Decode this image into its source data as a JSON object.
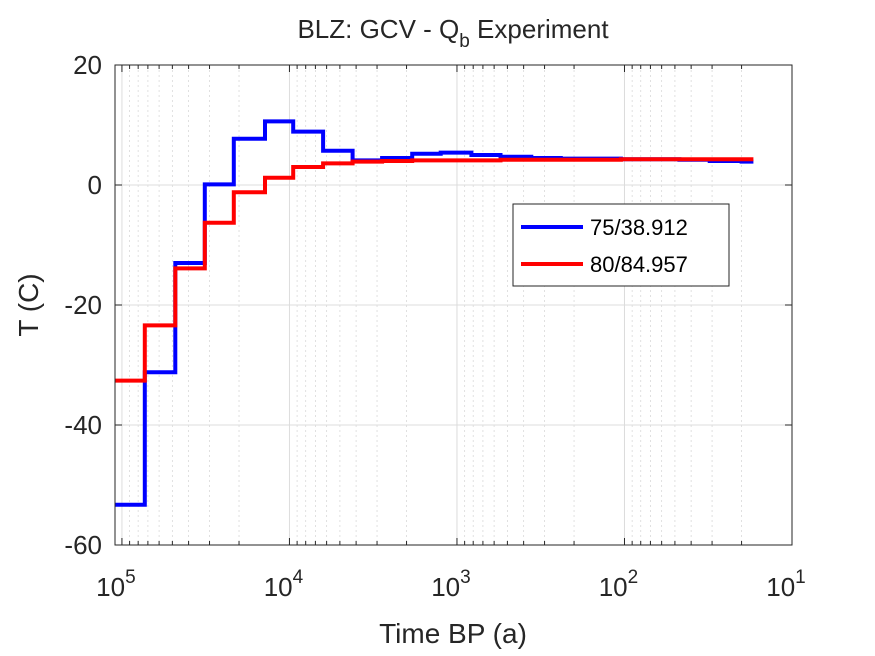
{
  "chart_data": {
    "type": "line",
    "title": "BLZ: GCV - Q",
    "title_subscript": "b",
    "title_suffix": " Experiment",
    "xlabel": "Time BP (a)",
    "ylabel": "T (C)",
    "x_scale": "log",
    "x_reversed": true,
    "xlim": [
      110000,
      10
    ],
    "ylim": [
      -60,
      20
    ],
    "x_ticks": [
      {
        "base": "10",
        "exp": "5",
        "value": 100000
      },
      {
        "base": "10",
        "exp": "4",
        "value": 10000
      },
      {
        "base": "10",
        "exp": "3",
        "value": 1000
      },
      {
        "base": "10",
        "exp": "2",
        "value": 100
      },
      {
        "base": "10",
        "exp": "1",
        "value": 10
      }
    ],
    "y_ticks": [
      {
        "label": "20",
        "value": 20
      },
      {
        "label": "0",
        "value": 0
      },
      {
        "label": "-20",
        "value": -20
      },
      {
        "label": "-40",
        "value": -40
      },
      {
        "label": "-60",
        "value": -60
      }
    ],
    "grid": true,
    "legend_position": "center-right",
    "series": [
      {
        "name": "75/38.912",
        "color": "#0000ff",
        "step": true,
        "x": [
          110000,
          73000,
          48000,
          32000,
          21500,
          14000,
          9500,
          6300,
          4200,
          2800,
          1850,
          1250,
          820,
          550,
          360,
          240,
          160,
          105,
          70,
          47,
          31,
          20,
          17
        ],
        "y": [
          -53.3,
          -31.2,
          -13,
          0.1,
          7.7,
          10.6,
          8.9,
          5.7,
          4.1,
          4.5,
          5.2,
          5.4,
          5.0,
          4.7,
          4.5,
          4.4,
          4.4,
          4.3,
          4.3,
          4.2,
          4.0,
          3.9,
          3.9
        ]
      },
      {
        "name": "80/84.957",
        "color": "#ff0000",
        "step": true,
        "x": [
          110000,
          73000,
          48000,
          32000,
          21500,
          14000,
          9500,
          6300,
          4200,
          2800,
          1850,
          1250,
          820,
          550,
          360,
          240,
          160,
          105,
          70,
          47,
          31,
          20,
          17
        ],
        "y": [
          -32.6,
          -23.4,
          -13.9,
          -6.3,
          -1.2,
          1.2,
          3.0,
          3.6,
          3.9,
          4.0,
          4.1,
          4.1,
          4.1,
          4.2,
          4.2,
          4.2,
          4.2,
          4.3,
          4.3,
          4.3,
          4.3,
          4.3,
          4.3
        ]
      }
    ]
  }
}
